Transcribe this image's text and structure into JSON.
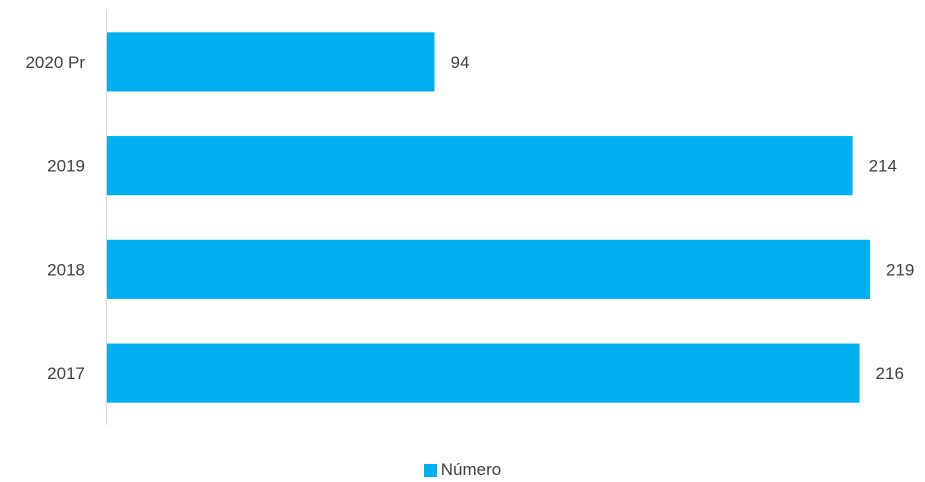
{
  "chart_data": {
    "type": "bar",
    "orientation": "horizontal",
    "categories": [
      "2020 Pr",
      "2019",
      "2018",
      "2017"
    ],
    "series": [
      {
        "name": "Número",
        "values": [
          94,
          214,
          219,
          216
        ],
        "color": "#00B0F0"
      }
    ],
    "data_labels": [
      "94",
      "214",
      "219",
      "216"
    ],
    "xlim": [
      0,
      219
    ],
    "grid": false,
    "legend_position": "bottom"
  },
  "colors": {
    "bar": "#00B0F0",
    "axis": "#d9d9d9",
    "text": "#404040"
  }
}
